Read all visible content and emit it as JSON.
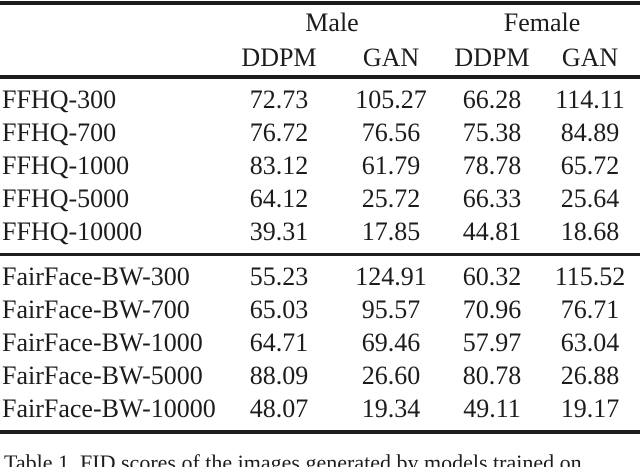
{
  "table": {
    "group_headers": [
      "Male",
      "Female"
    ],
    "column_headers": [
      "DDPM",
      "GAN",
      "DDPM",
      "GAN"
    ],
    "groups": [
      {
        "rows": [
          {
            "label": "FFHQ-300",
            "values": [
              "72.73",
              "105.27",
              "66.28",
              "114.11"
            ]
          },
          {
            "label": "FFHQ-700",
            "values": [
              "76.72",
              "76.56",
              "75.38",
              "84.89"
            ]
          },
          {
            "label": "FFHQ-1000",
            "values": [
              "83.12",
              "61.79",
              "78.78",
              "65.72"
            ]
          },
          {
            "label": "FFHQ-5000",
            "values": [
              "64.12",
              "25.72",
              "66.33",
              "25.64"
            ]
          },
          {
            "label": "FFHQ-10000",
            "values": [
              "39.31",
              "17.85",
              "44.81",
              "18.68"
            ]
          }
        ]
      },
      {
        "rows": [
          {
            "label": "FairFace-BW-300",
            "values": [
              "55.23",
              "124.91",
              "60.32",
              "115.52"
            ]
          },
          {
            "label": "FairFace-BW-700",
            "values": [
              "65.03",
              "95.57",
              "70.96",
              "76.71"
            ]
          },
          {
            "label": "FairFace-BW-1000",
            "values": [
              "64.71",
              "69.46",
              "57.97",
              "63.04"
            ]
          },
          {
            "label": "FairFace-BW-5000",
            "values": [
              "88.09",
              "26.60",
              "80.78",
              "26.88"
            ]
          },
          {
            "label": "FairFace-BW-10000",
            "values": [
              "48.07",
              "19.34",
              "49.11",
              "19.17"
            ]
          }
        ]
      }
    ]
  },
  "caption": {
    "text": "Table 1. FID scores of the images generated by models trained on"
  },
  "colors": {
    "background": "#ffffff",
    "text": "#1c1c1c",
    "rule": "#1d1d1b"
  }
}
